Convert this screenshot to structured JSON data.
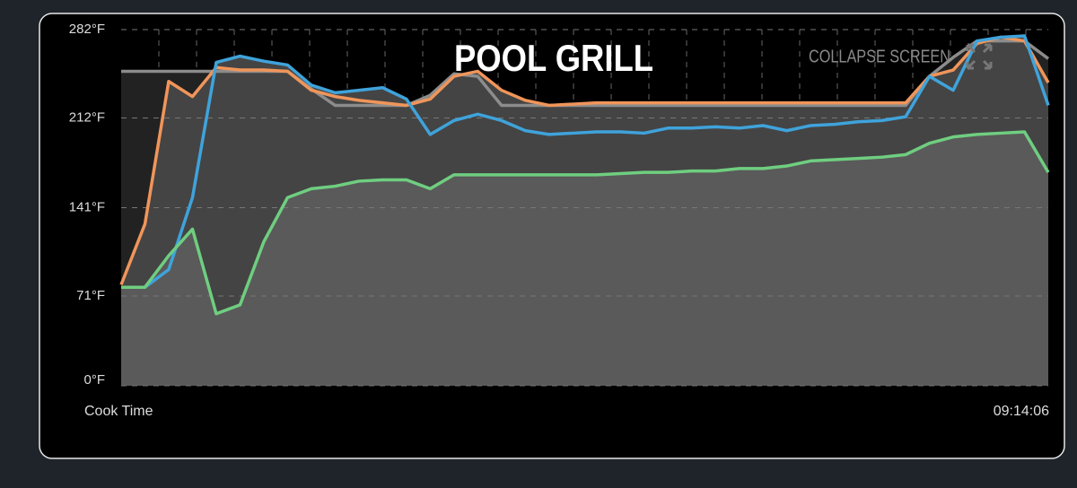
{
  "chart_data": {
    "type": "line",
    "title": "POOL GRILL",
    "xlabel": "Cook Time",
    "x_end_label": "09:14:06",
    "ylim": [
      0,
      282
    ],
    "yticks": [
      {
        "value": 0,
        "label": "0°F"
      },
      {
        "value": 71,
        "label": "71°F"
      },
      {
        "value": 141,
        "label": "141°F"
      },
      {
        "value": 212,
        "label": "212°F"
      },
      {
        "value": 282,
        "label": "282°F"
      }
    ],
    "grid": true,
    "series": [
      {
        "color": "#8c8c8c",
        "area_color": "#222222",
        "values": [
          249,
          249,
          249,
          249,
          249,
          249,
          249,
          249,
          235,
          222,
          222,
          222,
          222,
          230,
          247,
          245,
          222,
          222,
          222,
          222,
          222,
          222,
          222,
          222,
          222,
          222,
          222,
          222,
          222,
          222,
          222,
          222,
          222,
          222,
          245,
          260,
          273,
          273,
          273,
          259
        ]
      },
      {
        "color": "#f0955a",
        "area_color": "#444444",
        "values": [
          80,
          128,
          241,
          229,
          252,
          250,
          250,
          249,
          234,
          229,
          226,
          224,
          222,
          227,
          245,
          249,
          234,
          226,
          222,
          223,
          224,
          224,
          224,
          224,
          224,
          224,
          224,
          224,
          224,
          224,
          224,
          224,
          224,
          224,
          245,
          250,
          271,
          276,
          273,
          240
        ]
      },
      {
        "color": "#3fa3db",
        "area_color": "#444444",
        "values": [
          78,
          78,
          92,
          149,
          256,
          261,
          257,
          254,
          238,
          232,
          234,
          236,
          227,
          199,
          210,
          215,
          210,
          202,
          199,
          200,
          201,
          201,
          200,
          204,
          204,
          205,
          204,
          206,
          202,
          206,
          207,
          209,
          210,
          213,
          245,
          234,
          273,
          276,
          277,
          222
        ]
      },
      {
        "color": "#6fce80",
        "area_color": "#5a5a5a",
        "values": [
          78,
          78,
          103,
          124,
          57,
          64,
          114,
          149,
          156,
          158,
          162,
          163,
          163,
          156,
          167,
          167,
          167,
          167,
          167,
          167,
          167,
          168,
          169,
          169,
          170,
          170,
          172,
          172,
          174,
          178,
          179,
          180,
          181,
          183,
          192,
          197,
          199,
          200,
          201,
          169
        ]
      }
    ]
  },
  "controls": {
    "collapse": "COLLAPSE SCREEN"
  }
}
